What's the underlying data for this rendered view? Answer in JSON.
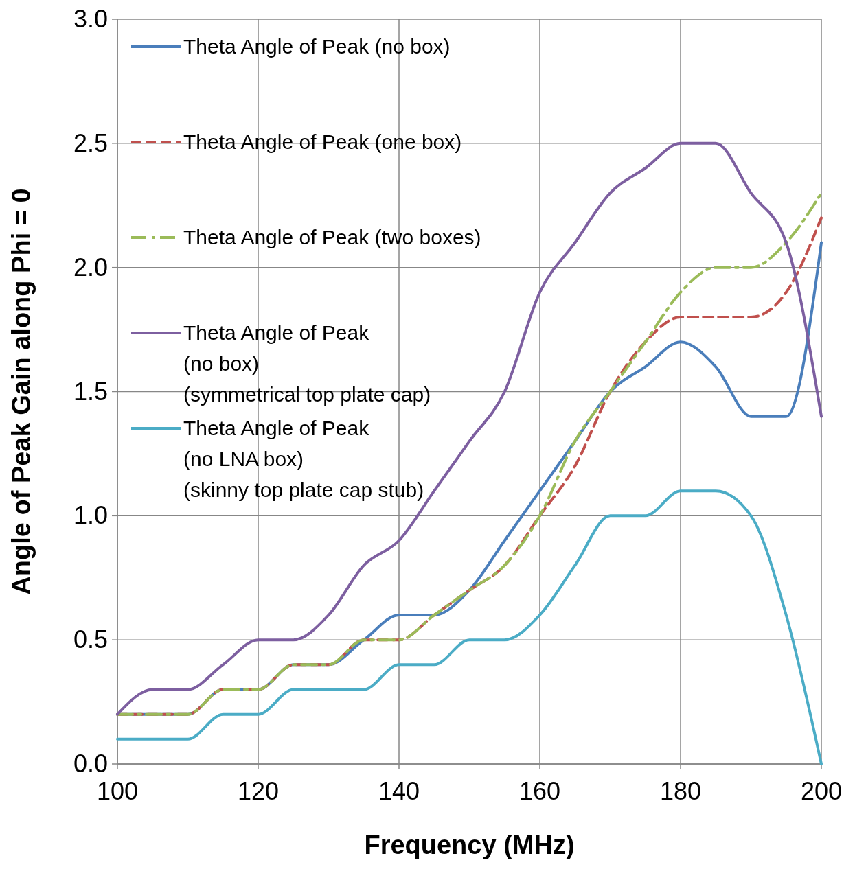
{
  "chart_data": {
    "type": "line",
    "xlabel": "Frequency (MHz)",
    "ylabel": "Angle of Peak Gain along Phi = 0",
    "x": [
      100,
      105,
      110,
      115,
      120,
      125,
      130,
      135,
      140,
      145,
      150,
      155,
      160,
      165,
      170,
      175,
      180,
      185,
      190,
      195,
      200
    ],
    "xlim": [
      100,
      200
    ],
    "xticks": [
      100,
      120,
      140,
      160,
      180,
      200
    ],
    "ylim": [
      0,
      3
    ],
    "yticks": [
      {
        "value": 0,
        "label": "0.0"
      },
      {
        "value": 0.5,
        "label": "0.5"
      },
      {
        "value": 1,
        "label": "1.0"
      },
      {
        "value": 1.5,
        "label": "1.5"
      },
      {
        "value": 2,
        "label": "2.0"
      },
      {
        "value": 2.5,
        "label": "2.5"
      },
      {
        "value": 3,
        "label": "3.0"
      }
    ],
    "grid": true,
    "legend": "top left",
    "series": [
      {
        "name": "Theta Angle of Peak (no box)",
        "color": "#4a7ebb",
        "line_style": "solid",
        "values": [
          0.2,
          0.2,
          0.2,
          0.3,
          0.3,
          0.4,
          0.4,
          0.5,
          0.6,
          0.6,
          0.7,
          0.9,
          1.1,
          1.3,
          1.5,
          1.6,
          1.7,
          1.6,
          1.4,
          1.4,
          2.1
        ]
      },
      {
        "name": "Theta Angle of Peak (one box)",
        "color": "#c0504d",
        "line_style": "dashed",
        "values": [
          0.2,
          0.2,
          0.2,
          0.3,
          0.3,
          0.4,
          0.4,
          0.5,
          0.5,
          0.6,
          0.7,
          0.8,
          1.0,
          1.2,
          1.5,
          1.7,
          1.8,
          1.8,
          1.8,
          1.9,
          2.2
        ]
      },
      {
        "name": "Theta Angle of Peak (two boxes)",
        "color": "#9bbb59",
        "line_style": "dashdot",
        "values": [
          0.2,
          0.2,
          0.2,
          0.3,
          0.3,
          0.4,
          0.4,
          0.5,
          0.5,
          0.6,
          0.7,
          0.8,
          1.0,
          1.3,
          1.5,
          1.7,
          1.9,
          2.0,
          2.0,
          2.1,
          2.3
        ]
      },
      {
        "name": "Theta Angle of Peak\n(no box)\n(symmetrical top plate cap)",
        "color": "#7d5fa0",
        "line_style": "solid",
        "values": [
          0.2,
          0.3,
          0.3,
          0.4,
          0.5,
          0.5,
          0.6,
          0.8,
          0.9,
          1.1,
          1.3,
          1.5,
          1.9,
          2.1,
          2.3,
          2.4,
          2.5,
          2.5,
          2.3,
          2.1,
          1.4
        ]
      },
      {
        "name": "Theta Angle of Peak\n(no LNA box)\n(skinny top plate cap stub)",
        "color": "#4bacc6",
        "line_style": "solid",
        "values": [
          0.1,
          0.1,
          0.1,
          0.2,
          0.2,
          0.3,
          0.3,
          0.3,
          0.4,
          0.4,
          0.5,
          0.5,
          0.6,
          0.8,
          1.0,
          1.0,
          1.1,
          1.1,
          1.0,
          0.6,
          0.0
        ]
      }
    ]
  }
}
